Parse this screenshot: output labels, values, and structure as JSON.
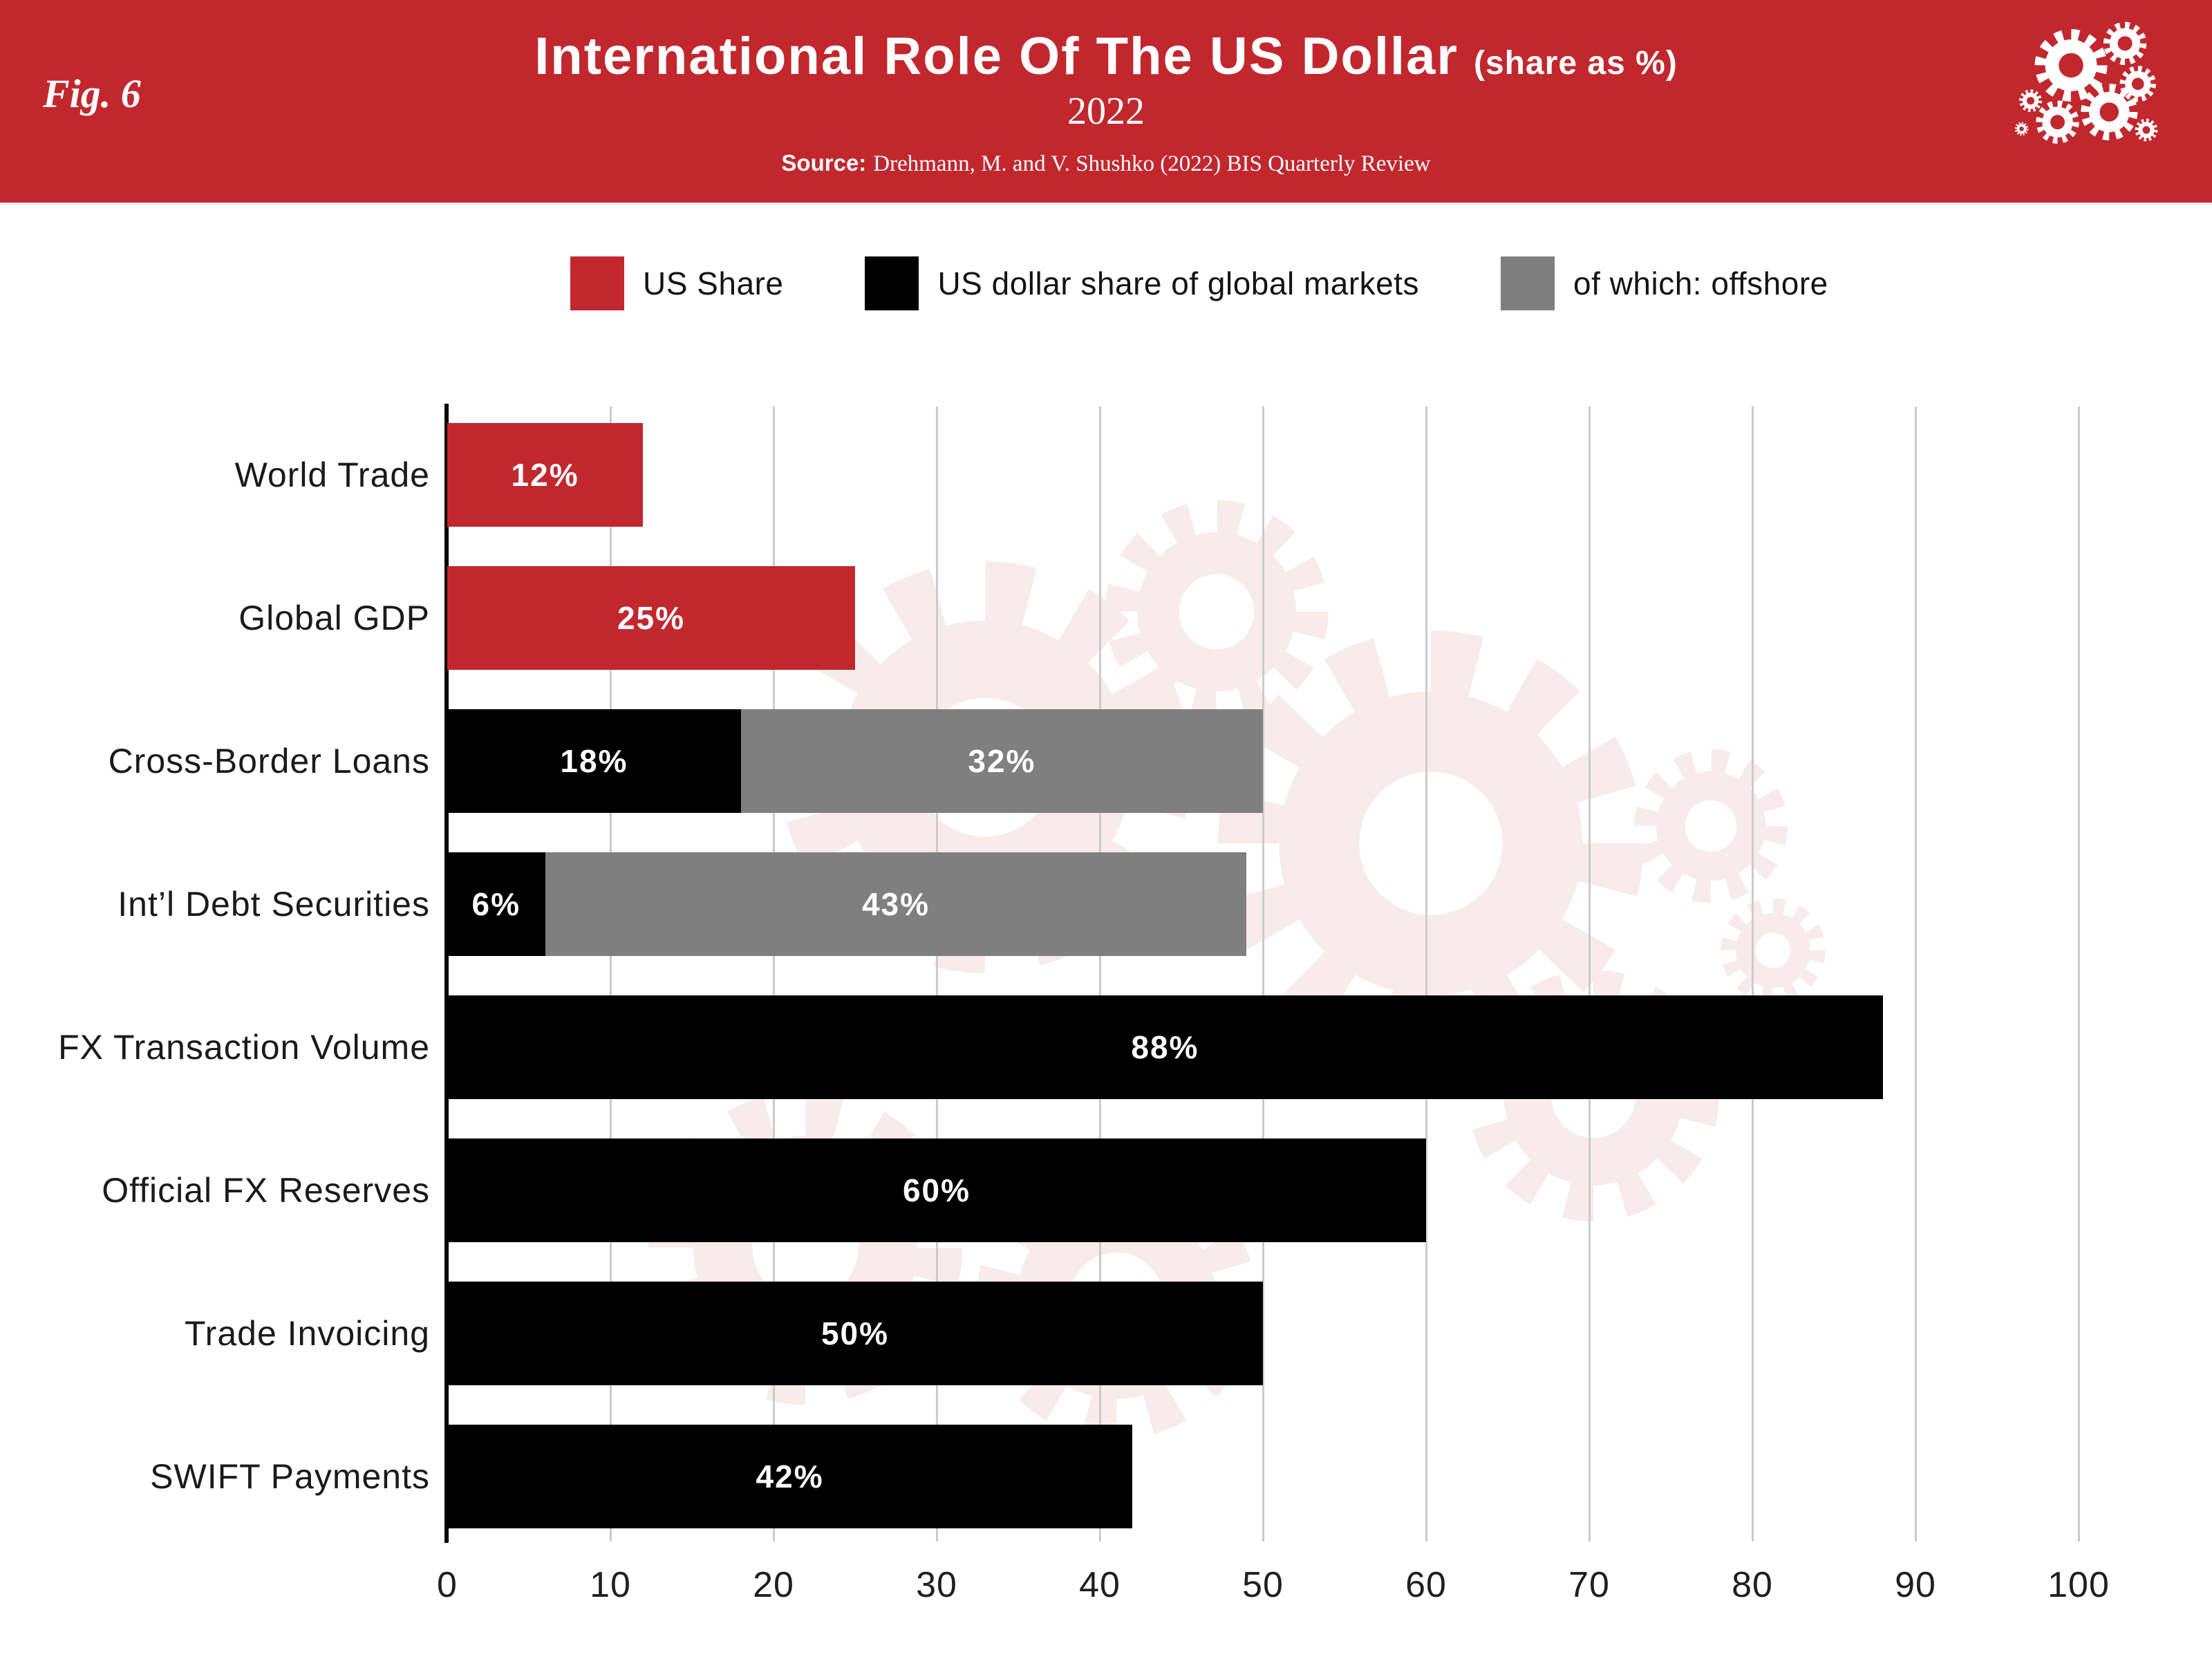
{
  "figure_label": "Fig. 6",
  "header": {
    "title": "International Role Of The US Dollar",
    "title_suffix": "(share as %)",
    "subtitle": "2022",
    "source_label": "Source:",
    "source_text": "Drehmann, M. and V. Shushko (2022) BIS Quarterly Review"
  },
  "legend": {
    "items": [
      {
        "label": "US Share",
        "color": "#c2272e"
      },
      {
        "label": "US dollar share of global markets",
        "color": "#000000"
      },
      {
        "label": "of which: offshore",
        "color": "#7f7f7f"
      }
    ]
  },
  "colors": {
    "header_bg": "#c2272e",
    "red": "#c2272e",
    "black": "#000000",
    "gray": "#7f7f7f",
    "gridline": "#cbcbcb",
    "watermark": "#f7eceb",
    "text": "#1a1a1a",
    "bar_value_text": "#ffffff"
  },
  "chart_data": {
    "type": "bar",
    "orientation": "horizontal",
    "title": "International Role Of The US Dollar (share as %) — 2022",
    "xlabel": "share as %",
    "ylabel": "",
    "xlim": [
      0,
      100
    ],
    "xticks": [
      0,
      10,
      20,
      30,
      40,
      50,
      60,
      70,
      80,
      90,
      100
    ],
    "grid": true,
    "legend_position": "top",
    "categories": [
      "World Trade",
      "Global GDP",
      "Cross-Border Loans",
      "Int’l Debt Securities",
      "FX Transaction Volume",
      "Official FX Reserves",
      "Trade Invoicing",
      "SWIFT Payments"
    ],
    "series": [
      {
        "name": "US Share",
        "color": "#c2272e",
        "values": [
          12,
          25,
          null,
          null,
          null,
          null,
          null,
          null
        ]
      },
      {
        "name": "US dollar share of global markets",
        "color": "#000000",
        "values": [
          null,
          null,
          18,
          6,
          88,
          60,
          50,
          42
        ]
      },
      {
        "name": "of which: offshore",
        "color": "#7f7f7f",
        "values": [
          null,
          null,
          32,
          43,
          null,
          null,
          null,
          null
        ]
      }
    ],
    "bar_value_labels": [
      "12%",
      "25%",
      "18% + 32%",
      "6% + 43%",
      "88%",
      "60%",
      "50%",
      "42%"
    ]
  }
}
